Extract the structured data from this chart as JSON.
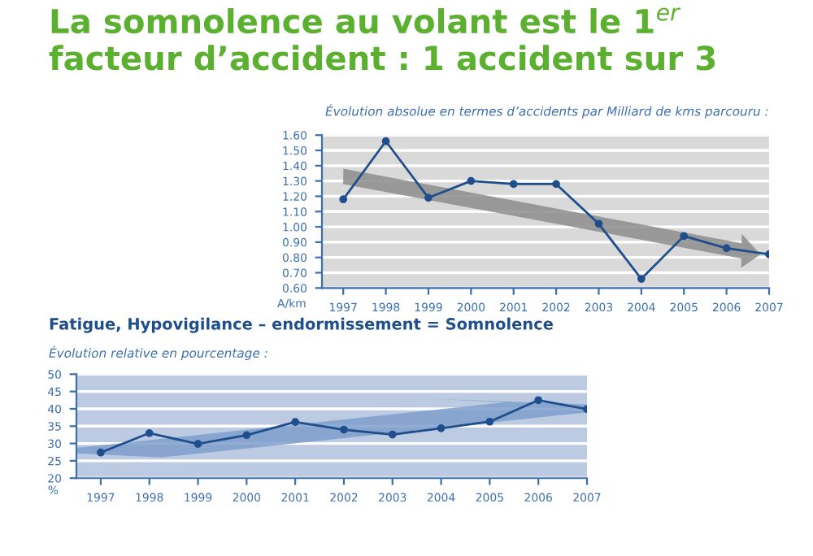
{
  "chart_data": [
    {
      "type": "line",
      "title": "La somnolence au volant est le 1$^{er}$ facteur d’accident : 1 accident sur 3",
      "subtitle": "Évolution absolue en termes d’accidents par Milliard de kms parcouru :",
      "ylabel": "A/km",
      "x": [
        1997,
        1998,
        1999,
        2000,
        2001,
        2002,
        2003,
        2004,
        2005,
        2006,
        2007
      ],
      "series": [
        {
          "color": "#1f4e8c",
          "values": [
            1.18,
            1.56,
            1.19,
            1.3,
            1.28,
            1.28,
            1.02,
            0.66,
            0.94,
            0.86,
            0.82
          ]
        }
      ],
      "xlim": [
        1996.5,
        2007
      ],
      "xticks": [
        1997,
        1998,
        1999,
        2000,
        2001,
        2002,
        2003,
        2004,
        2005,
        2006,
        2007
      ],
      "ylim": [
        0.6,
        1.6
      ],
      "yticks": [
        {
          "value": 0.6,
          "label": "0.60"
        },
        {
          "value": 0.7,
          "label": "0.70"
        },
        {
          "value": 0.8,
          "label": "0.80"
        },
        {
          "value": 0.9,
          "label": "0.90"
        },
        {
          "value": 1.0,
          "label": "1.00"
        },
        {
          "value": 1.1,
          "label": "1.10"
        },
        {
          "value": 1.2,
          "label": "1.20"
        },
        {
          "value": 1.3,
          "label": "1.30"
        },
        {
          "value": 1.4,
          "label": "1.40"
        },
        {
          "value": 1.5,
          "label": "1.50"
        },
        {
          "value": 1.6,
          "label": "1.60"
        }
      ],
      "grid": "y",
      "marker": "circle",
      "line_style": "solid"
    },
    {
      "type": "line",
      "title": "Fatigue, Hypovigilance – endormissement = Somnolence",
      "subtitle": "Évolution relative en pourcentage :",
      "ylabel": "%",
      "x": [
        1997,
        1998,
        1999,
        2000,
        2001,
        2002,
        2003,
        2004,
        2005,
        2006,
        2007
      ],
      "series": [
        {
          "color": "#1f4e8c",
          "values": [
            27.4,
            33.0,
            29.9,
            32.4,
            36.2,
            34.0,
            32.6,
            34.4,
            36.3,
            42.5,
            39.9
          ]
        }
      ],
      "xlim": [
        1996.5,
        2007
      ],
      "xticks": [
        1997,
        1998,
        1999,
        2000,
        2001,
        2002,
        2003,
        2004,
        2005,
        2006,
        2007
      ],
      "ylim": [
        20,
        50
      ],
      "yticks": [
        20,
        25,
        30,
        35,
        40,
        45,
        50
      ],
      "grid": "y",
      "marker": "circle",
      "line_style": "solid"
    }
  ]
}
